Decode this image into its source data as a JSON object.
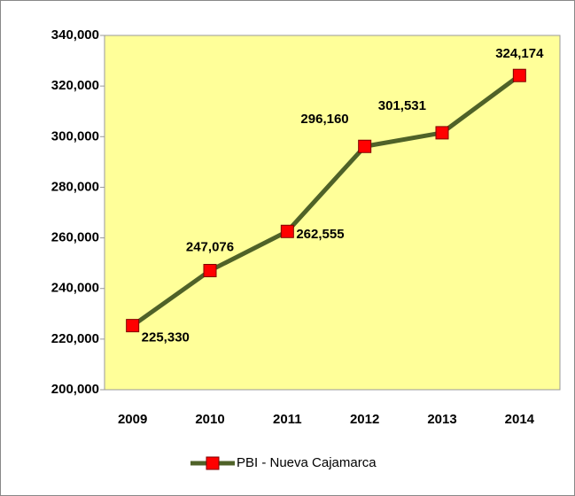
{
  "chart_data": {
    "type": "line",
    "categories": [
      "2009",
      "2010",
      "2011",
      "2012",
      "2013",
      "2014"
    ],
    "series": [
      {
        "name": "PBI - Nueva Cajamarca",
        "color": "#4f6228",
        "marker_color": "#ff0000",
        "values": [
          225330,
          247076,
          262555,
          296160,
          301531,
          324174
        ],
        "value_labels": [
          "225,330",
          "247,076",
          "262,555",
          "296,160",
          "301,531",
          "324,174"
        ]
      }
    ],
    "ylim": [
      200000,
      340000
    ],
    "yticks": [
      {
        "value": 200000,
        "label": "200,000"
      },
      {
        "value": 220000,
        "label": "220,000"
      },
      {
        "value": 240000,
        "label": "240,000"
      },
      {
        "value": 260000,
        "label": "260,000"
      },
      {
        "value": 280000,
        "label": "280,000"
      },
      {
        "value": 300000,
        "label": "300,000"
      },
      {
        "value": 320000,
        "label": "320,000"
      },
      {
        "value": 340000,
        "label": "340,000"
      }
    ],
    "plot_background": "#ffff99",
    "legend": "bottom"
  }
}
